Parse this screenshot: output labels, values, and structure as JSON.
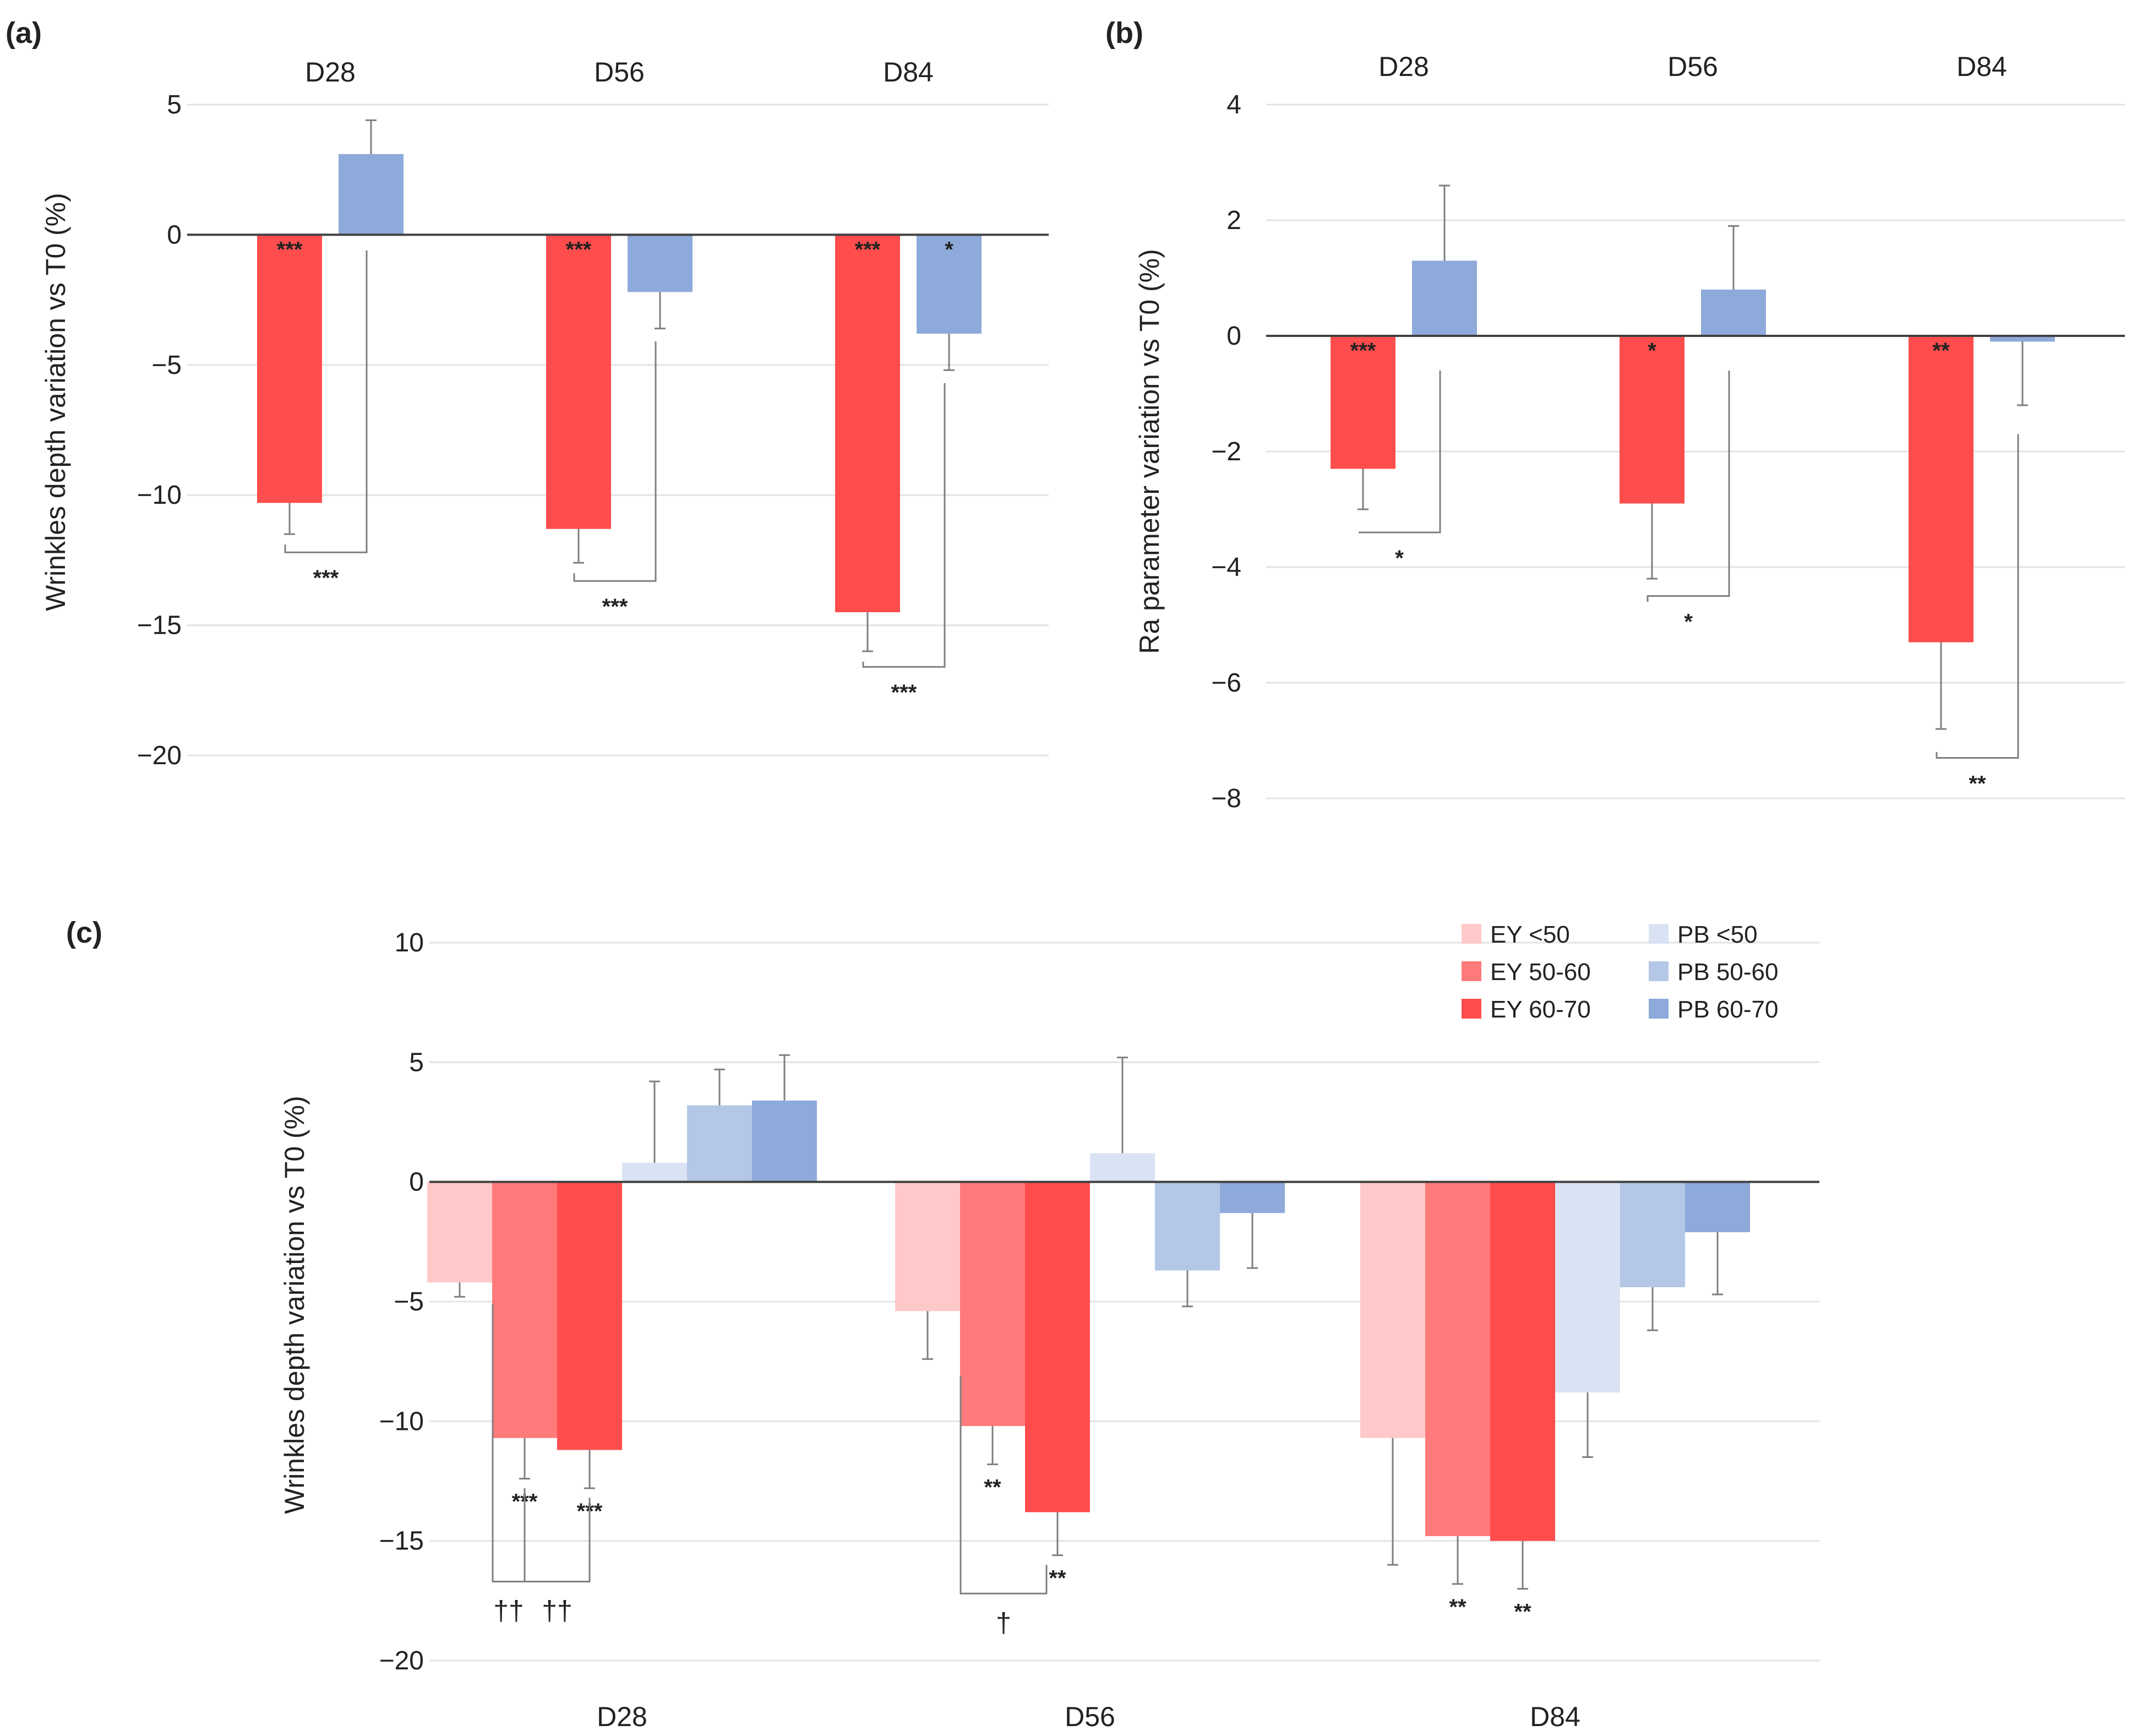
{
  "chart_data": [
    {
      "panel": "(a)",
      "type": "bar",
      "categories": [
        "D28",
        "D56",
        "D84"
      ],
      "ylabel": "Wrinkles depth variation vs T0 (%)",
      "ylim": [
        -20,
        5
      ],
      "yticks": [
        5,
        0,
        -5,
        -10,
        -15,
        -20
      ],
      "ytick_labels": [
        "5",
        "0",
        "−5",
        "−10",
        "−15",
        "−20"
      ],
      "grid": true,
      "series": [
        {
          "name": "EY",
          "color": "#ff4d4d",
          "values": [
            -10.3,
            -11.3,
            -14.5
          ],
          "errors": [
            1.2,
            1.3,
            1.5
          ],
          "labels": [
            "***",
            "***",
            "***"
          ]
        },
        {
          "name": "PB",
          "color": "#8eaadb",
          "values": [
            3.1,
            -2.2,
            -3.8
          ],
          "errors": [
            1.3,
            1.4,
            1.4
          ],
          "labels": [
            "",
            "",
            "*"
          ]
        }
      ],
      "comparisons": [
        {
          "category": "D28",
          "bracket_low": -12.2,
          "label": "***"
        },
        {
          "category": "D56",
          "bracket_low": -13.3,
          "label": "***"
        },
        {
          "category": "D84",
          "bracket_low": -16.6,
          "label": "***"
        }
      ]
    },
    {
      "panel": "(b)",
      "type": "bar",
      "categories": [
        "D28",
        "D56",
        "D84"
      ],
      "ylabel": "Ra parameter variation vs T0 (%)",
      "ylim": [
        -8,
        4
      ],
      "yticks": [
        4,
        2,
        0,
        -2,
        -4,
        -6,
        -8
      ],
      "ytick_labels": [
        "4",
        "2",
        "0",
        "−2",
        "−4",
        "−6",
        "−8"
      ],
      "grid": true,
      "series": [
        {
          "name": "EY",
          "color": "#ff4d4d",
          "values": [
            -2.3,
            -2.9,
            -5.3
          ],
          "errors": [
            0.7,
            1.3,
            1.5
          ],
          "labels": [
            "***",
            "*",
            "**"
          ]
        },
        {
          "name": "PB",
          "color": "#8eaadb",
          "values": [
            1.3,
            0.8,
            -0.1
          ],
          "errors": [
            1.3,
            1.1,
            1.1
          ],
          "labels": [
            "",
            "",
            ""
          ]
        }
      ],
      "comparisons": [
        {
          "category": "D28",
          "bracket_low": -3.4,
          "label": "*"
        },
        {
          "category": "D56",
          "bracket_low": -4.5,
          "label": "*"
        },
        {
          "category": "D84",
          "bracket_low": -7.3,
          "label": "**"
        }
      ]
    },
    {
      "panel": "(c)",
      "type": "bar",
      "categories": [
        "D28",
        "D56",
        "D84"
      ],
      "ylabel": "Wrinkles depth variation vs T0 (%)",
      "ylim": [
        -20,
        10
      ],
      "yticks": [
        10,
        5,
        0,
        -5,
        -10,
        -15,
        -20
      ],
      "ytick_labels": [
        "10",
        "5",
        "0",
        "−5",
        "−10",
        "−15",
        "−20"
      ],
      "grid": true,
      "legend_position": "top-right",
      "series": [
        {
          "name": "EY <50",
          "color": "#ffc9c9",
          "values": [
            -4.2,
            -5.4,
            -10.7
          ],
          "errors": [
            0.6,
            2.0,
            5.3
          ],
          "labels": [
            "",
            "",
            ""
          ]
        },
        {
          "name": "EY 50-60",
          "color": "#ff7a7a",
          "values": [
            -10.7,
            -10.2,
            -14.8
          ],
          "errors": [
            1.7,
            1.6,
            2.0
          ],
          "labels": [
            "***",
            "**",
            "**"
          ]
        },
        {
          "name": "EY 60-70",
          "color": "#ff4d4d",
          "values": [
            -11.2,
            -13.8,
            -15.0
          ],
          "errors": [
            1.6,
            1.8,
            2.0
          ],
          "labels": [
            "***",
            "**",
            "**"
          ]
        },
        {
          "name": "PB <50",
          "color": "#dae3f3",
          "values": [
            0.8,
            1.2,
            -8.8
          ],
          "errors": [
            3.4,
            4.0,
            2.7
          ],
          "labels": [
            "",
            "",
            ""
          ]
        },
        {
          "name": "PB 50-60",
          "color": "#b4c7e7",
          "values": [
            3.2,
            -3.7,
            -4.4
          ],
          "errors": [
            1.5,
            1.5,
            1.8
          ],
          "labels": [
            "",
            "",
            ""
          ]
        },
        {
          "name": "PB 60-70",
          "color": "#8eaadb",
          "values": [
            3.4,
            -1.3,
            -2.1
          ],
          "errors": [
            1.9,
            2.3,
            2.6
          ],
          "labels": [
            "",
            "",
            ""
          ]
        }
      ],
      "comparisons": [
        {
          "category": "D28",
          "from": 0,
          "to": 1,
          "low": -16.7,
          "label": "††"
        },
        {
          "category": "D28",
          "from": 1,
          "to": 2,
          "low": -16.7,
          "label": "††"
        },
        {
          "category": "D56",
          "from": 0,
          "to": 2,
          "low": -17.2,
          "label": "†"
        }
      ]
    }
  ]
}
